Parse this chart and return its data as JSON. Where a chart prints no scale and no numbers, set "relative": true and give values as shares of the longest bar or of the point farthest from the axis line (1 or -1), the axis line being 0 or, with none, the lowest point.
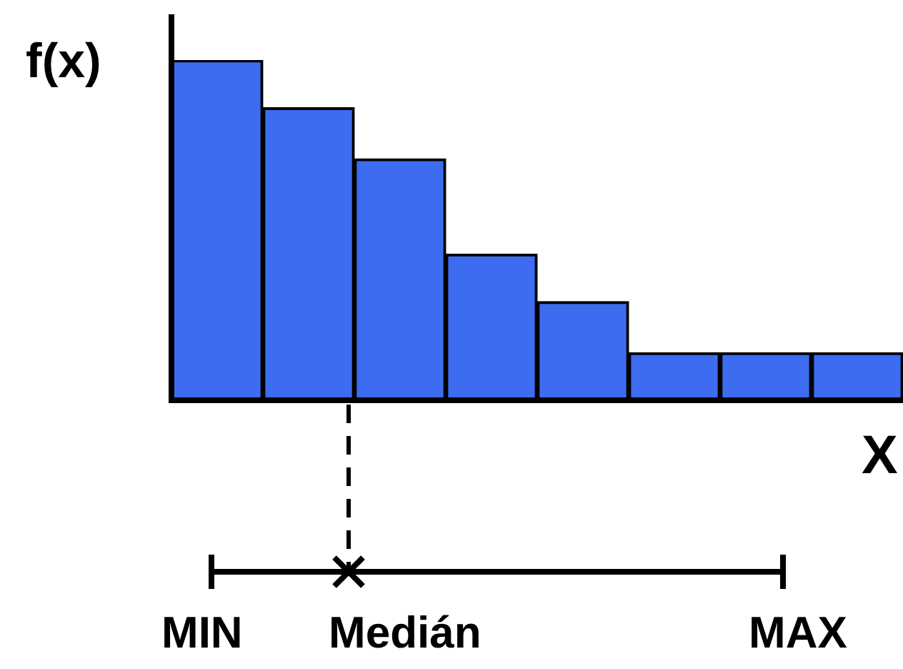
{
  "chart_data": {
    "type": "bar",
    "ylabel": "f(x)",
    "xlabel": "X",
    "relative": true,
    "categories": [
      null,
      null,
      null,
      null,
      null,
      null,
      null,
      null
    ],
    "values": [
      1,
      0.86,
      0.71,
      0.43,
      0.29,
      0.14,
      0.14,
      0.14
    ],
    "color": "#3d6cf0",
    "annotations": [
      "MIN",
      "Medián",
      "MAX"
    ]
  }
}
